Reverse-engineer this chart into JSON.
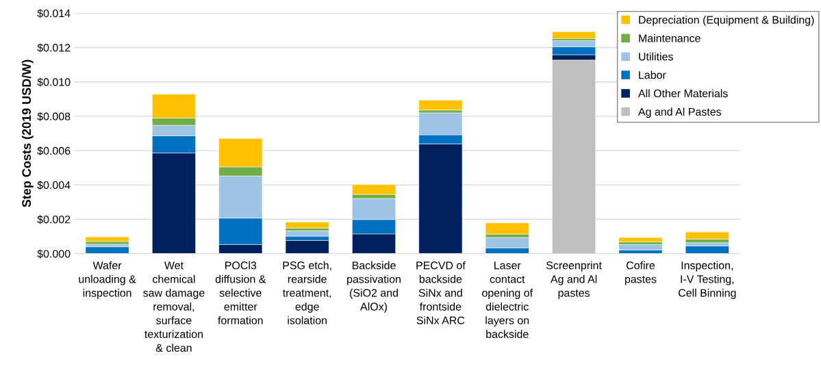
{
  "chart_data": {
    "type": "bar",
    "stacked": true,
    "ylabel": "Step Costs (2019 USD/W)",
    "categories": [
      "Wafer\nunloading &\ninspection",
      "Wet\nchemical\nsaw damage\nremoval,\nsurface\ntexturization\n& clean",
      "POCl3\ndiffusion &\nselective\nemitter\nformation",
      "PSG etch,\nrearside\ntreatment,\nedge\nisolation",
      "Backside\npassivation\n(SiO2 and\nAlOx)",
      "PECVD of\nbackside\nSiNx and\nfrontside\nSiNx ARC",
      "Laser\ncontact\nopening of\ndielectric\nlayers on\nbackside",
      "Screenprint\nAg and Al\npastes",
      "Cofire\npastes",
      "Inspection,\nI-V Testing,\nCell Binning"
    ],
    "series": [
      {
        "name": "Ag and Al Pastes",
        "color": "#bfbfbf",
        "values": [
          0,
          0,
          0,
          0,
          0,
          0,
          0,
          0.01127,
          0,
          0
        ]
      },
      {
        "name": "All Other Materials",
        "color": "#002060",
        "values": [
          0,
          0.00586,
          0.00053,
          0.00077,
          0.00115,
          0.00639,
          0,
          0.00031,
          0,
          0
        ]
      },
      {
        "name": "Labor",
        "color": "#0070c0",
        "values": [
          0.0004,
          0.001,
          0.00154,
          0.00025,
          0.00084,
          0.00053,
          0.00033,
          0.00046,
          0.00021,
          0.00045
        ]
      },
      {
        "name": "Utilities",
        "color": "#9dc3e6",
        "values": [
          0.00015,
          0.00061,
          0.00245,
          0.00031,
          0.00122,
          0.00128,
          0.00061,
          0.00036,
          0.00032,
          0.00019
        ]
      },
      {
        "name": "Maintenance",
        "color": "#70ad47",
        "values": [
          0.00016,
          0.00042,
          0.00053,
          0.00016,
          0.00024,
          0.00016,
          0.0002,
          0.00013,
          0.00015,
          0.0002
        ]
      },
      {
        "name": "Depreciation (Equipment & Building)",
        "color": "#ffc000",
        "values": [
          0.00027,
          0.00139,
          0.00166,
          0.00034,
          0.00057,
          0.00058,
          0.00065,
          0.00039,
          0.00026,
          0.00042
        ]
      }
    ],
    "ylim": [
      0,
      0.014
    ],
    "yticks": [
      {
        "value": 0,
        "label": "$0.000"
      },
      {
        "value": 0.002,
        "label": "$0.002"
      },
      {
        "value": 0.004,
        "label": "$0.004"
      },
      {
        "value": 0.006,
        "label": "$0.006"
      },
      {
        "value": 0.008,
        "label": "$0.008"
      },
      {
        "value": 0.01,
        "label": "$0.010"
      },
      {
        "value": 0.012,
        "label": "$0.012"
      },
      {
        "value": 0.014,
        "label": "$0.014"
      }
    ],
    "grid": "y",
    "legend": "top right"
  }
}
